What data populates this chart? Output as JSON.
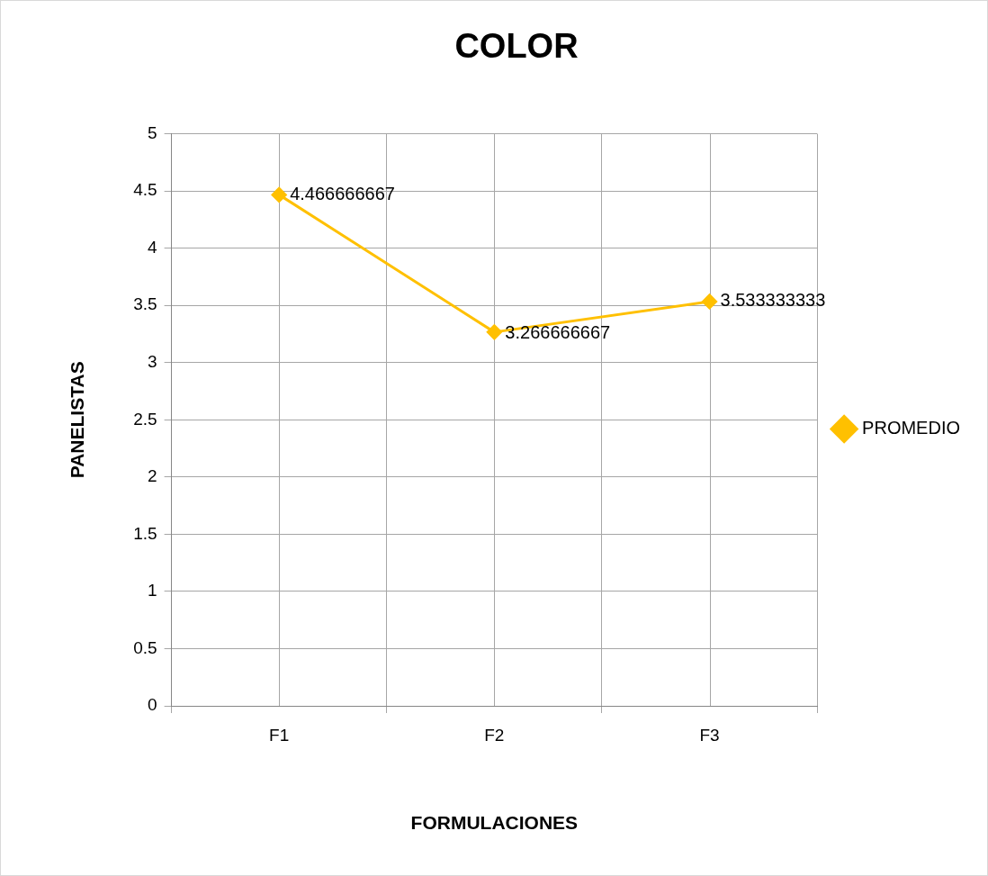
{
  "chart_data": {
    "type": "line",
    "title": "COLOR",
    "xlabel": "FORMULACIONES",
    "ylabel": "PANELISTAS",
    "categories": [
      "F1",
      "F2",
      "F3"
    ],
    "series": [
      {
        "name": "PROMEDIO",
        "color": "#ffc000",
        "values": [
          4.466666667,
          3.266666667,
          3.533333333
        ]
      }
    ],
    "ylim": [
      0,
      5
    ],
    "yticks": [
      0,
      0.5,
      1,
      1.5,
      2,
      2.5,
      3,
      3.5,
      4,
      4.5,
      5
    ],
    "grid": true,
    "legend": "right",
    "marker": "diamond",
    "line_style": "solid",
    "data_labels": true
  }
}
